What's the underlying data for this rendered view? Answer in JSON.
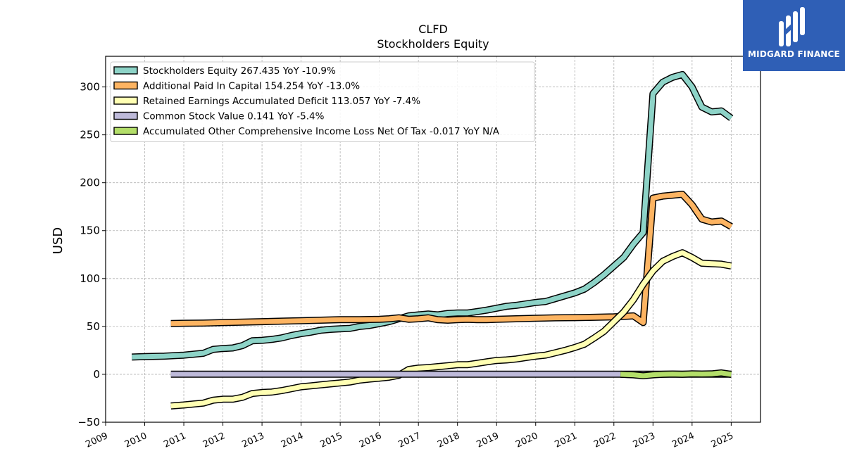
{
  "chart_data": {
    "type": "line",
    "title": "CLFD",
    "subtitle": "Stockholders  Equity",
    "ylabel": "USD",
    "xlabel": "",
    "xlim": [
      2009.0,
      2025.75
    ],
    "ylim": [
      -50,
      332
    ],
    "yticks": [
      -50,
      0,
      50,
      100,
      150,
      200,
      250,
      300
    ],
    "xticks": [
      "2009",
      "2010",
      "2011",
      "2012",
      "2013",
      "2014",
      "2015",
      "2016",
      "2017",
      "2018",
      "2019",
      "2020",
      "2021",
      "2022",
      "2023",
      "2024",
      "2025"
    ],
    "grid": true,
    "legend_position": "top-left",
    "series": [
      {
        "name": "Stockholders Equity",
        "legend": "Stockholders Equity  267.435 YoY -10.9%",
        "color": "#8dd3c7",
        "points": [
          [
            2009.67,
            18
          ],
          [
            2010.0,
            18.5
          ],
          [
            2010.5,
            19
          ],
          [
            2010.75,
            19.5
          ],
          [
            2011.0,
            20
          ],
          [
            2011.25,
            21
          ],
          [
            2011.5,
            22
          ],
          [
            2011.75,
            26
          ],
          [
            2012.0,
            27
          ],
          [
            2012.25,
            27.5
          ],
          [
            2012.5,
            30
          ],
          [
            2012.75,
            35
          ],
          [
            2013.0,
            35.5
          ],
          [
            2013.25,
            36.5
          ],
          [
            2013.5,
            38
          ],
          [
            2013.75,
            40.5
          ],
          [
            2014.0,
            42.5
          ],
          [
            2014.25,
            44
          ],
          [
            2014.5,
            46
          ],
          [
            2014.75,
            47
          ],
          [
            2015.0,
            47.5
          ],
          [
            2015.25,
            48
          ],
          [
            2015.5,
            50
          ],
          [
            2015.75,
            51
          ],
          [
            2016.0,
            53
          ],
          [
            2016.25,
            55
          ],
          [
            2016.5,
            58
          ],
          [
            2016.75,
            61
          ],
          [
            2017.0,
            62
          ],
          [
            2017.25,
            63
          ],
          [
            2017.5,
            62
          ],
          [
            2017.75,
            63.5
          ],
          [
            2018.0,
            64
          ],
          [
            2018.25,
            64
          ],
          [
            2018.5,
            65.5
          ],
          [
            2018.75,
            67
          ],
          [
            2019.0,
            69
          ],
          [
            2019.25,
            71
          ],
          [
            2019.5,
            72
          ],
          [
            2019.75,
            73.5
          ],
          [
            2020.0,
            75
          ],
          [
            2020.25,
            76
          ],
          [
            2020.5,
            79
          ],
          [
            2020.75,
            82
          ],
          [
            2021.0,
            85
          ],
          [
            2021.25,
            89
          ],
          [
            2021.5,
            96
          ],
          [
            2021.75,
            104
          ],
          [
            2022.0,
            113
          ],
          [
            2022.25,
            122
          ],
          [
            2022.5,
            136
          ],
          [
            2022.75,
            148
          ],
          [
            2023.0,
            293
          ],
          [
            2023.25,
            305
          ],
          [
            2023.5,
            310
          ],
          [
            2023.75,
            313
          ],
          [
            2024.0,
            300
          ],
          [
            2024.25,
            279
          ],
          [
            2024.5,
            274
          ],
          [
            2024.75,
            275
          ],
          [
            2025.0,
            267.435
          ]
        ]
      },
      {
        "name": "Additional Paid In Capital",
        "legend": "Additional Paid In Capital  154.254 YoY -13.0%",
        "color": "#fdb462",
        "points": [
          [
            2010.67,
            53
          ],
          [
            2011.0,
            53.3
          ],
          [
            2011.5,
            53.5
          ],
          [
            2012.0,
            54
          ],
          [
            2012.5,
            54.5
          ],
          [
            2013.0,
            55
          ],
          [
            2013.5,
            55.5
          ],
          [
            2014.0,
            56
          ],
          [
            2014.5,
            56.5
          ],
          [
            2015.0,
            57
          ],
          [
            2015.5,
            57
          ],
          [
            2016.0,
            57.5
          ],
          [
            2016.25,
            58
          ],
          [
            2016.5,
            59
          ],
          [
            2016.75,
            57.5
          ],
          [
            2017.0,
            58
          ],
          [
            2017.25,
            59
          ],
          [
            2017.5,
            57
          ],
          [
            2017.75,
            56.5
          ],
          [
            2018.0,
            57
          ],
          [
            2018.25,
            57.5
          ],
          [
            2018.5,
            57
          ],
          [
            2018.75,
            57
          ],
          [
            2019.0,
            57.5
          ],
          [
            2019.5,
            58
          ],
          [
            2020.0,
            58.5
          ],
          [
            2020.5,
            59
          ],
          [
            2021.0,
            59.2
          ],
          [
            2021.5,
            59.5
          ],
          [
            2022.0,
            60
          ],
          [
            2022.25,
            60.5
          ],
          [
            2022.5,
            61
          ],
          [
            2022.75,
            54
          ],
          [
            2023.0,
            184
          ],
          [
            2023.25,
            186
          ],
          [
            2023.5,
            187
          ],
          [
            2023.75,
            188
          ],
          [
            2024.0,
            177
          ],
          [
            2024.25,
            162
          ],
          [
            2024.5,
            159
          ],
          [
            2024.75,
            160
          ],
          [
            2025.0,
            154.254
          ]
        ]
      },
      {
        "name": "Retained Earnings Accumulated Deficit",
        "legend": "Retained Earnings Accumulated Deficit  113.057 YoY -7.4%",
        "color": "#ffffb3",
        "points": [
          [
            2010.67,
            -33
          ],
          [
            2011.0,
            -32
          ],
          [
            2011.25,
            -31
          ],
          [
            2011.5,
            -30
          ],
          [
            2011.75,
            -27
          ],
          [
            2012.0,
            -26
          ],
          [
            2012.25,
            -26
          ],
          [
            2012.5,
            -24
          ],
          [
            2012.75,
            -20
          ],
          [
            2013.0,
            -19
          ],
          [
            2013.25,
            -18.5
          ],
          [
            2013.5,
            -17
          ],
          [
            2013.75,
            -15
          ],
          [
            2014.0,
            -13
          ],
          [
            2014.25,
            -12
          ],
          [
            2014.5,
            -11
          ],
          [
            2014.75,
            -10
          ],
          [
            2015.0,
            -9
          ],
          [
            2015.25,
            -8
          ],
          [
            2015.5,
            -6
          ],
          [
            2015.75,
            -5
          ],
          [
            2016.0,
            -4
          ],
          [
            2016.25,
            -3
          ],
          [
            2016.5,
            -1
          ],
          [
            2016.75,
            5
          ],
          [
            2017.0,
            6.5
          ],
          [
            2017.25,
            7
          ],
          [
            2017.5,
            8
          ],
          [
            2017.75,
            9
          ],
          [
            2018.0,
            10
          ],
          [
            2018.25,
            10
          ],
          [
            2018.5,
            11.5
          ],
          [
            2018.75,
            13
          ],
          [
            2019.0,
            14.5
          ],
          [
            2019.25,
            15
          ],
          [
            2019.5,
            16
          ],
          [
            2019.75,
            17.5
          ],
          [
            2020.0,
            19
          ],
          [
            2020.25,
            20
          ],
          [
            2020.5,
            22.5
          ],
          [
            2020.75,
            25
          ],
          [
            2021.0,
            28
          ],
          [
            2021.25,
            31.5
          ],
          [
            2021.5,
            38
          ],
          [
            2021.75,
            45
          ],
          [
            2022.0,
            55
          ],
          [
            2022.25,
            65
          ],
          [
            2022.5,
            78
          ],
          [
            2022.75,
            94
          ],
          [
            2023.0,
            108
          ],
          [
            2023.25,
            118
          ],
          [
            2023.5,
            123
          ],
          [
            2023.75,
            127
          ],
          [
            2024.0,
            122
          ],
          [
            2024.25,
            116
          ],
          [
            2024.5,
            115.5
          ],
          [
            2024.75,
            115
          ],
          [
            2025.0,
            113.057
          ]
        ]
      },
      {
        "name": "Common Stock Value",
        "legend": "Common Stock Value  0.141 YoY -5.4%",
        "color": "#bebada",
        "points": [
          [
            2010.67,
            0.13
          ],
          [
            2011.0,
            0.13
          ],
          [
            2012.0,
            0.13
          ],
          [
            2013.0,
            0.13
          ],
          [
            2014.0,
            0.13
          ],
          [
            2015.0,
            0.13
          ],
          [
            2016.0,
            0.14
          ],
          [
            2017.0,
            0.14
          ],
          [
            2018.0,
            0.14
          ],
          [
            2019.0,
            0.14
          ],
          [
            2020.0,
            0.14
          ],
          [
            2021.0,
            0.14
          ],
          [
            2022.0,
            0.14
          ],
          [
            2023.0,
            0.15
          ],
          [
            2024.0,
            0.15
          ],
          [
            2025.0,
            0.141
          ]
        ]
      },
      {
        "name": "Accumulated Other Comprehensive Income Loss Net Of Tax",
        "legend": "Accumulated Other Comprehensive Income Loss Net Of Tax  -0.017 YoY N/A",
        "color": "#b3de69",
        "points": [
          [
            2022.17,
            0
          ],
          [
            2022.5,
            -0.5
          ],
          [
            2022.75,
            -1.5
          ],
          [
            2023.0,
            -0.5
          ],
          [
            2023.25,
            0
          ],
          [
            2023.5,
            0.3
          ],
          [
            2023.75,
            0
          ],
          [
            2024.0,
            0.5
          ],
          [
            2024.25,
            0.3
          ],
          [
            2024.5,
            0.5
          ],
          [
            2024.75,
            1.5
          ],
          [
            2025.0,
            -0.017
          ]
        ]
      }
    ]
  },
  "logo": {
    "text": "MIDGARD FINANCE",
    "icon": "midgard-m-logo-icon",
    "background": "#2f5fb6"
  }
}
